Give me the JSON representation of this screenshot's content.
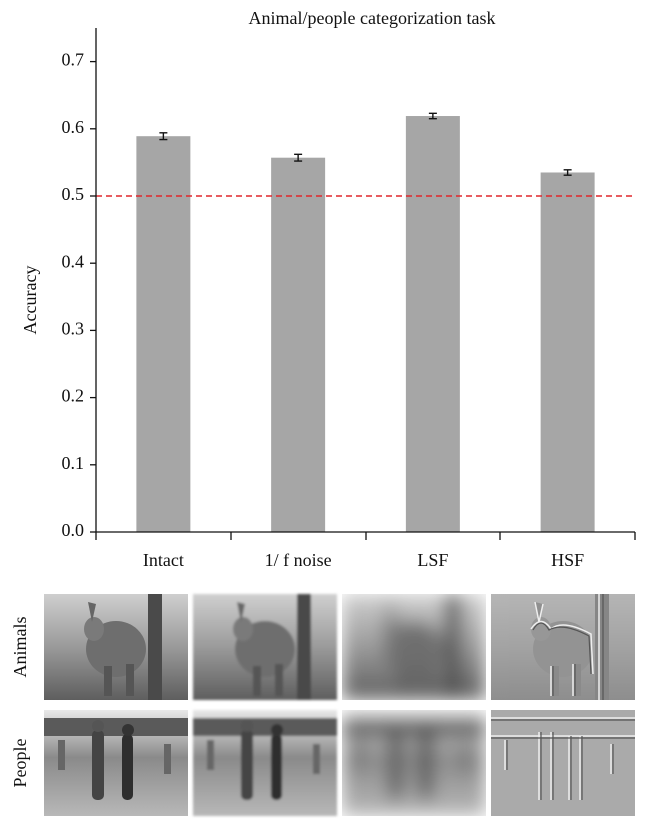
{
  "chart_data": {
    "type": "bar",
    "title": "Animal/people categorization task",
    "y_label": "Accuracy",
    "categories": [
      "Intact",
      "1/ f noise",
      "LSF",
      "HSF"
    ],
    "values": [
      0.589,
      0.557,
      0.619,
      0.535
    ],
    "errors": [
      0.005,
      0.005,
      0.004,
      0.004
    ],
    "color": "#a6a6a6",
    "ylim": [
      0,
      0.75
    ],
    "yticks": [
      {
        "value": 0,
        "label": "0.0"
      },
      0.1,
      0.2,
      0.3,
      0.4,
      0.5,
      0.6,
      0.7
    ],
    "reference_line": 0.5,
    "reference_color": "#e0262b"
  },
  "image_rows": [
    "Animals",
    "People"
  ]
}
